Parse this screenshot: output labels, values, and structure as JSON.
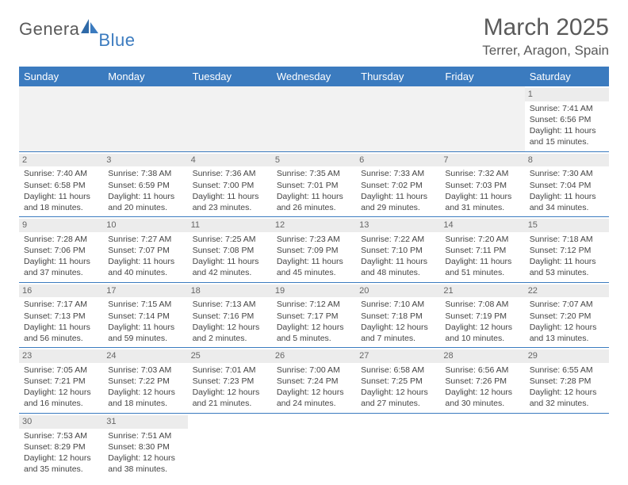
{
  "brand": {
    "main": "Genera",
    "sub": "Blue"
  },
  "title": "March 2025",
  "location": "Terrer, Aragon, Spain",
  "colors": {
    "header_bg": "#3b7bbf",
    "header_text": "#ffffff",
    "daynum_bg": "#ececec",
    "border": "#3b7bbf",
    "text": "#444444",
    "title_text": "#5a5a5a"
  },
  "weekdays": [
    "Sunday",
    "Monday",
    "Tuesday",
    "Wednesday",
    "Thursday",
    "Friday",
    "Saturday"
  ],
  "days": {
    "1": {
      "sunrise": "7:41 AM",
      "sunset": "6:56 PM",
      "daylight": "11 hours and 15 minutes."
    },
    "2": {
      "sunrise": "7:40 AM",
      "sunset": "6:58 PM",
      "daylight": "11 hours and 18 minutes."
    },
    "3": {
      "sunrise": "7:38 AM",
      "sunset": "6:59 PM",
      "daylight": "11 hours and 20 minutes."
    },
    "4": {
      "sunrise": "7:36 AM",
      "sunset": "7:00 PM",
      "daylight": "11 hours and 23 minutes."
    },
    "5": {
      "sunrise": "7:35 AM",
      "sunset": "7:01 PM",
      "daylight": "11 hours and 26 minutes."
    },
    "6": {
      "sunrise": "7:33 AM",
      "sunset": "7:02 PM",
      "daylight": "11 hours and 29 minutes."
    },
    "7": {
      "sunrise": "7:32 AM",
      "sunset": "7:03 PM",
      "daylight": "11 hours and 31 minutes."
    },
    "8": {
      "sunrise": "7:30 AM",
      "sunset": "7:04 PM",
      "daylight": "11 hours and 34 minutes."
    },
    "9": {
      "sunrise": "7:28 AM",
      "sunset": "7:06 PM",
      "daylight": "11 hours and 37 minutes."
    },
    "10": {
      "sunrise": "7:27 AM",
      "sunset": "7:07 PM",
      "daylight": "11 hours and 40 minutes."
    },
    "11": {
      "sunrise": "7:25 AM",
      "sunset": "7:08 PM",
      "daylight": "11 hours and 42 minutes."
    },
    "12": {
      "sunrise": "7:23 AM",
      "sunset": "7:09 PM",
      "daylight": "11 hours and 45 minutes."
    },
    "13": {
      "sunrise": "7:22 AM",
      "sunset": "7:10 PM",
      "daylight": "11 hours and 48 minutes."
    },
    "14": {
      "sunrise": "7:20 AM",
      "sunset": "7:11 PM",
      "daylight": "11 hours and 51 minutes."
    },
    "15": {
      "sunrise": "7:18 AM",
      "sunset": "7:12 PM",
      "daylight": "11 hours and 53 minutes."
    },
    "16": {
      "sunrise": "7:17 AM",
      "sunset": "7:13 PM",
      "daylight": "11 hours and 56 minutes."
    },
    "17": {
      "sunrise": "7:15 AM",
      "sunset": "7:14 PM",
      "daylight": "11 hours and 59 minutes."
    },
    "18": {
      "sunrise": "7:13 AM",
      "sunset": "7:16 PM",
      "daylight": "12 hours and 2 minutes."
    },
    "19": {
      "sunrise": "7:12 AM",
      "sunset": "7:17 PM",
      "daylight": "12 hours and 5 minutes."
    },
    "20": {
      "sunrise": "7:10 AM",
      "sunset": "7:18 PM",
      "daylight": "12 hours and 7 minutes."
    },
    "21": {
      "sunrise": "7:08 AM",
      "sunset": "7:19 PM",
      "daylight": "12 hours and 10 minutes."
    },
    "22": {
      "sunrise": "7:07 AM",
      "sunset": "7:20 PM",
      "daylight": "12 hours and 13 minutes."
    },
    "23": {
      "sunrise": "7:05 AM",
      "sunset": "7:21 PM",
      "daylight": "12 hours and 16 minutes."
    },
    "24": {
      "sunrise": "7:03 AM",
      "sunset": "7:22 PM",
      "daylight": "12 hours and 18 minutes."
    },
    "25": {
      "sunrise": "7:01 AM",
      "sunset": "7:23 PM",
      "daylight": "12 hours and 21 minutes."
    },
    "26": {
      "sunrise": "7:00 AM",
      "sunset": "7:24 PM",
      "daylight": "12 hours and 24 minutes."
    },
    "27": {
      "sunrise": "6:58 AM",
      "sunset": "7:25 PM",
      "daylight": "12 hours and 27 minutes."
    },
    "28": {
      "sunrise": "6:56 AM",
      "sunset": "7:26 PM",
      "daylight": "12 hours and 30 minutes."
    },
    "29": {
      "sunrise": "6:55 AM",
      "sunset": "7:28 PM",
      "daylight": "12 hours and 32 minutes."
    },
    "30": {
      "sunrise": "7:53 AM",
      "sunset": "8:29 PM",
      "daylight": "12 hours and 35 minutes."
    },
    "31": {
      "sunrise": "7:51 AM",
      "sunset": "8:30 PM",
      "daylight": "12 hours and 38 minutes."
    }
  },
  "labels": {
    "sunrise": "Sunrise:",
    "sunset": "Sunset:",
    "daylight": "Daylight:"
  },
  "layout": [
    [
      null,
      null,
      null,
      null,
      null,
      null,
      1
    ],
    [
      2,
      3,
      4,
      5,
      6,
      7,
      8
    ],
    [
      9,
      10,
      11,
      12,
      13,
      14,
      15
    ],
    [
      16,
      17,
      18,
      19,
      20,
      21,
      22
    ],
    [
      23,
      24,
      25,
      26,
      27,
      28,
      29
    ],
    [
      30,
      31,
      null,
      null,
      null,
      null,
      null
    ]
  ]
}
